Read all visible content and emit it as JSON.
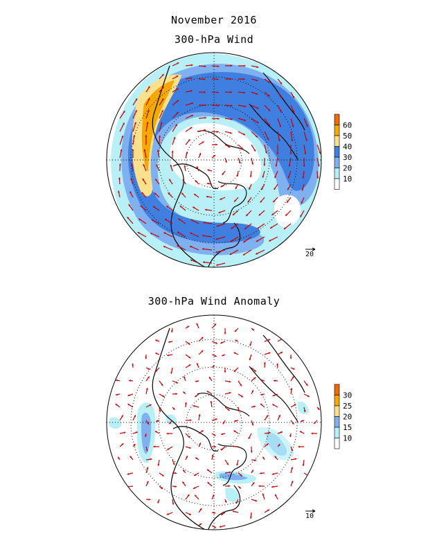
{
  "titles": {
    "month": "November 2016",
    "top_panel": "300-hPa Wind",
    "bottom_panel": "300-hPa Wind Anomaly"
  },
  "top_map": {
    "legend_levels": [
      "60",
      "50",
      "40",
      "30",
      "20",
      "10"
    ],
    "legend_colors": [
      "#f06a00",
      "#f5a800",
      "#fce08c",
      "#3f7fe0",
      "#7fb0f0",
      "#b8f0f8",
      "#ffffff"
    ],
    "reference_vector_label": "20",
    "arrow_color": "#c80000"
  },
  "bottom_map": {
    "legend_levels": [
      "30",
      "25",
      "20",
      "15",
      "10"
    ],
    "legend_colors": [
      "#f06a00",
      "#f5a800",
      "#fce08c",
      "#7fb0f0",
      "#b8f0f8",
      "#ffffff"
    ],
    "reference_vector_label": "10",
    "arrow_color": "#c80000"
  }
}
